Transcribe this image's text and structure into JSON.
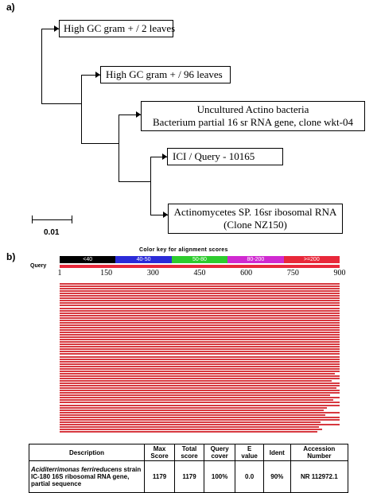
{
  "panel_a": {
    "label": "a)",
    "leaves": [
      {
        "line1": "High GC gram + / 2 leaves"
      },
      {
        "line1": "High GC gram + / 96 leaves"
      },
      {
        "line1": "Uncultured Actino bacteria",
        "line2": "Bacterium partial 16 sr RNA gene, clone wkt-04"
      },
      {
        "line1": "ICI / Query - 10165"
      },
      {
        "line1": "Actinomycetes SP. 16sr ibosomal RNA",
        "line2": "(Clone NZ150)"
      }
    ],
    "scale_bar": "0.01"
  },
  "panel_b": {
    "label": "b)",
    "color_key": {
      "title": "Color key for alignment scores",
      "bins": [
        {
          "label": "<40",
          "color": "#000000",
          "text_color": "#ffffff"
        },
        {
          "label": "40-50",
          "color": "#2b2bd8",
          "text_color": "#ffffff"
        },
        {
          "label": "50-80",
          "color": "#2ecc2e",
          "text_color": "#ffffff"
        },
        {
          "label": "80-200",
          "color": "#d02ad0",
          "text_color": "#ffffff"
        },
        {
          "label": ">=200",
          "color": "#e8283a",
          "text_color": "#ffffff"
        }
      ]
    },
    "query_label": "Query",
    "axis_ticks": [
      "1",
      "150",
      "300",
      "450",
      "600",
      "750",
      "900"
    ],
    "hit_color": "#d7383f",
    "hit_count": 62,
    "table": {
      "headers": [
        {
          "line1": "Description",
          "line2": ""
        },
        {
          "line1": "Max",
          "line2": "Score"
        },
        {
          "line1": "Total",
          "line2": "score"
        },
        {
          "line1": "Query",
          "line2": "cover"
        },
        {
          "line1": "E",
          "line2": "value"
        },
        {
          "line1": "Ident",
          "line2": ""
        },
        {
          "line1": "Accession",
          "line2": "Number"
        }
      ],
      "row": {
        "organism": "Aciditerrimonas ferrireducens",
        "desc_rest": " strain IC-180 16S ribosomal RNA gene, partial sequence",
        "max_score": "1179",
        "total_score": "1179",
        "query_cover": "100%",
        "e_value": "0.0",
        "ident": "90%",
        "accession": "NR 112972.1"
      }
    }
  }
}
